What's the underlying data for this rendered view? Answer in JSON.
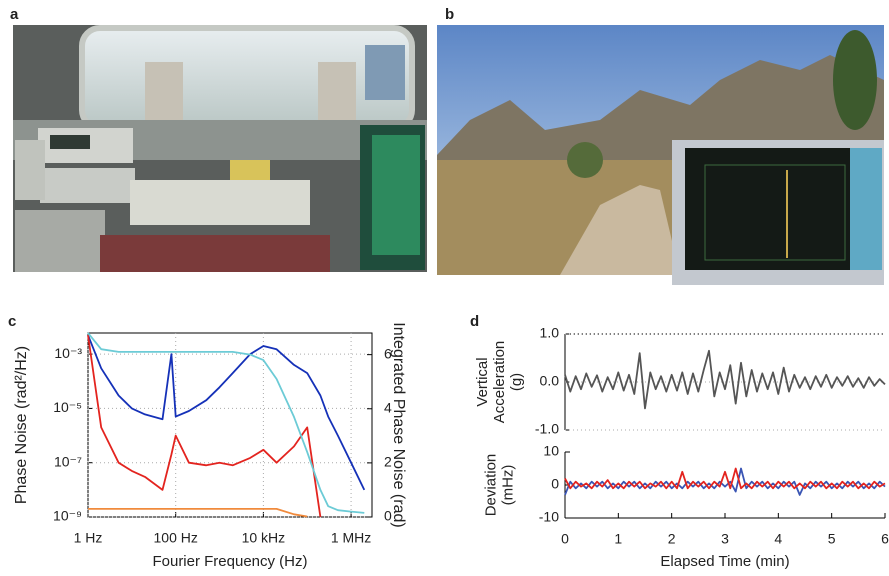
{
  "photos": [
    {
      "panel": "a"
    },
    {
      "panel": "b"
    }
  ],
  "chart_data": [
    {
      "type": "line",
      "panel": "c",
      "xscale": "log",
      "yscale": "log",
      "grid": true,
      "xlabel": "Fourier Frequency (Hz)",
      "ylabel": "Phase Noise (rad²/Hz)",
      "y2label": "Integrated Phase Noise (rad)",
      "xlim": [
        1,
        3000000
      ],
      "ylim": [
        1e-09,
        0.006
      ],
      "y2lim": [
        0,
        6.8
      ],
      "xticks": [
        {
          "value": 1,
          "label": "1 Hz"
        },
        {
          "value": 100,
          "label": "100 Hz"
        },
        {
          "value": 10000,
          "label": "10 kHz"
        },
        {
          "value": 1000000,
          "label": "1 MHz"
        }
      ],
      "yticks": [
        {
          "value": 1e-09,
          "label": "10⁻⁹"
        },
        {
          "value": 1e-07,
          "label": "10⁻⁷"
        },
        {
          "value": 1e-05,
          "label": "10⁻⁵"
        },
        {
          "value": 0.001,
          "label": "10⁻³"
        }
      ],
      "y2ticks": [
        0,
        2,
        4,
        6
      ],
      "x": [
        1,
        2,
        5,
        10,
        20,
        50,
        80,
        100,
        200,
        500,
        1000,
        2000,
        5000,
        10000,
        20000,
        50000,
        100000,
        200000,
        300000,
        500000,
        1000000,
        2000000
      ],
      "series": [
        {
          "color": "#1531b8",
          "values": [
            0.005,
            0.0003,
            3e-05,
            1e-05,
            6e-06,
            4e-06,
            0.001,
            5e-06,
            8e-06,
            2e-05,
            6e-05,
            0.0002,
            0.001,
            0.002,
            0.0015,
            0.0004,
            0.0002,
            3e-05,
            5e-06,
            1e-06,
            1e-07,
            1e-08
          ]
        },
        {
          "color": "#e3241f",
          "values": [
            0.005,
            2e-06,
            1e-07,
            5e-08,
            3e-08,
            1e-08,
            2e-07,
            1e-06,
            1e-07,
            8e-08,
            1e-07,
            8e-08,
            1.5e-07,
            3e-07,
            1e-07,
            4e-07,
            2e-06,
            1e-09,
            null,
            null,
            null,
            null
          ]
        },
        {
          "color": "#6ccbd6",
          "axis": "y2",
          "values": [
            6.8,
            6.2,
            6.1,
            6.1,
            6.1,
            6.1,
            6.1,
            6.1,
            6.1,
            6.1,
            6.1,
            6.1,
            6.0,
            5.8,
            5.1,
            3.7,
            2.4,
            1.0,
            0.4,
            0.25,
            0.2,
            0.15
          ]
        },
        {
          "color": "#f08a3c",
          "axis": "y2",
          "values": [
            0.3,
            0.3,
            0.3,
            0.3,
            0.3,
            0.3,
            0.3,
            0.3,
            0.3,
            0.3,
            0.3,
            0.3,
            0.3,
            0.3,
            0.3,
            0.1,
            0.02,
            null,
            null,
            null,
            null,
            null
          ]
        }
      ]
    },
    {
      "type": "line",
      "panel": "d",
      "grid": true,
      "ylabel": [
        "Vertical",
        "Acceleration",
        "(g)"
      ],
      "xlim": [
        0,
        6
      ],
      "ylim": [
        -1,
        1
      ],
      "yticks": [
        {
          "value": -1,
          "label": "-1.0"
        },
        {
          "value": 0,
          "label": "0.0"
        },
        {
          "value": 1,
          "label": "1.0"
        }
      ],
      "x": [
        0,
        0.1,
        0.2,
        0.3,
        0.4,
        0.5,
        0.6,
        0.7,
        0.8,
        0.9,
        1,
        1.1,
        1.2,
        1.3,
        1.4,
        1.5,
        1.6,
        1.7,
        1.8,
        1.9,
        2,
        2.1,
        2.2,
        2.3,
        2.4,
        2.5,
        2.6,
        2.7,
        2.8,
        2.9,
        3,
        3.1,
        3.2,
        3.3,
        3.4,
        3.5,
        3.6,
        3.7,
        3.8,
        3.9,
        4,
        4.1,
        4.2,
        4.3,
        4.4,
        4.5,
        4.6,
        4.7,
        4.8,
        4.9,
        5,
        5.1,
        5.2,
        5.3,
        5.4,
        5.5,
        5.6,
        5.7,
        5.8,
        5.9,
        6
      ],
      "series": [
        {
          "color": "#555555",
          "values": [
            0.15,
            -0.2,
            0.12,
            -0.15,
            0.18,
            -0.1,
            0.14,
            -0.2,
            0.1,
            -0.15,
            0.2,
            -0.18,
            0.15,
            -0.25,
            0.6,
            -0.55,
            0.2,
            -0.15,
            0.12,
            -0.2,
            0.15,
            -0.18,
            0.2,
            -0.25,
            0.18,
            -0.2,
            0.25,
            0.65,
            -0.3,
            0.2,
            -0.15,
            0.35,
            -0.45,
            0.4,
            -0.3,
            0.25,
            -0.2,
            0.18,
            -0.15,
            0.2,
            -0.25,
            0.3,
            -0.2,
            0.15,
            -0.12,
            0.1,
            -0.15,
            0.12,
            -0.1,
            0.15,
            -0.12,
            0.1,
            -0.08,
            0.12,
            -0.1,
            0.08,
            -0.12,
            0.1,
            -0.08,
            0.06,
            -0.05
          ]
        }
      ]
    },
    {
      "type": "line",
      "ylabel": [
        "Deviation",
        "(mHz)"
      ],
      "xlabel": "Elapsed Time (min)",
      "xlim": [
        0,
        6
      ],
      "ylim": [
        -10,
        10
      ],
      "xticks": [
        0,
        1,
        2,
        3,
        4,
        5,
        6
      ],
      "yticks": [
        -10,
        0,
        10
      ],
      "x": [
        0,
        0.1,
        0.2,
        0.3,
        0.4,
        0.5,
        0.6,
        0.7,
        0.8,
        0.9,
        1,
        1.1,
        1.2,
        1.3,
        1.4,
        1.5,
        1.6,
        1.7,
        1.8,
        1.9,
        2,
        2.1,
        2.2,
        2.3,
        2.4,
        2.5,
        2.6,
        2.7,
        2.8,
        2.9,
        3,
        3.1,
        3.2,
        3.3,
        3.4,
        3.5,
        3.6,
        3.7,
        3.8,
        3.9,
        4,
        4.1,
        4.2,
        4.3,
        4.4,
        4.5,
        4.6,
        4.7,
        4.8,
        4.9,
        5,
        5.1,
        5.2,
        5.3,
        5.4,
        5.5,
        5.6,
        5.7,
        5.8,
        5.9,
        6
      ],
      "series": [
        {
          "color": "#3a55b4",
          "values": [
            -3,
            1,
            -1,
            0.5,
            -1,
            1,
            -0.5,
            1,
            -1,
            0.5,
            -1,
            1,
            -0.5,
            1,
            -1,
            0.5,
            -1,
            1,
            -0.5,
            1,
            -1,
            0.5,
            -1,
            1,
            -0.5,
            1,
            -1,
            0.5,
            -1,
            1,
            -0.5,
            1,
            -2,
            5,
            -1,
            1,
            -0.5,
            1,
            -1,
            0.5,
            -1,
            1,
            -0.5,
            1,
            -3,
            0.5,
            -1,
            1,
            -0.5,
            1,
            -1,
            0.5,
            -1,
            1,
            -0.5,
            1,
            -1,
            0.5,
            -1,
            1,
            -0.5
          ]
        },
        {
          "color": "#e3241f",
          "values": [
            2,
            -1,
            1,
            -0.5,
            0.5,
            -1,
            1,
            -0.5,
            1.5,
            -1,
            0.5,
            -1,
            1,
            -0.5,
            1,
            -1,
            0.5,
            -0.5,
            1,
            -1,
            1,
            -1,
            4,
            -1,
            1,
            -0.5,
            1,
            -1,
            1,
            -0.5,
            4,
            -1,
            5,
            -1,
            0.5,
            -1,
            1,
            -0.5,
            1,
            -1,
            1,
            -0.5,
            1,
            -1,
            0.5,
            -1,
            1,
            -0.5,
            1,
            -1,
            0.5,
            -1,
            1,
            -0.5,
            1,
            -1,
            0.5,
            -1,
            1,
            -0.5,
            0.5
          ]
        }
      ]
    }
  ]
}
